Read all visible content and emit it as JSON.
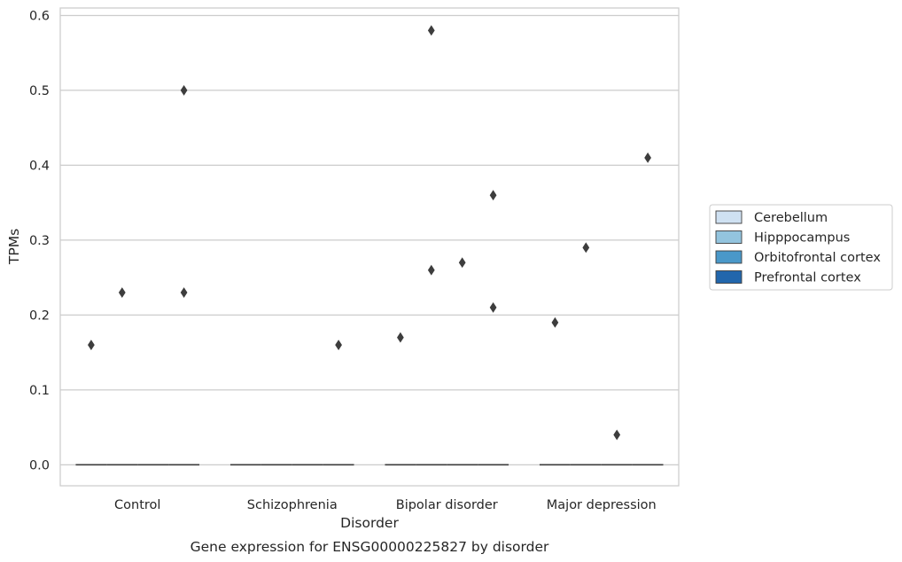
{
  "chart_data": {
    "type": "box",
    "title": "",
    "caption": "Gene expression for ENSG00000225827 by disorder",
    "xlabel": "Disorder",
    "ylabel": "TPMs",
    "categories": [
      "Control",
      "Schizophrenia",
      "Bipolar disorder",
      "Major depression"
    ],
    "ylim": [
      -0.028,
      0.61
    ],
    "yticks": [
      "0.0",
      "0.1",
      "0.2",
      "0.3",
      "0.4",
      "0.5",
      "0.6"
    ],
    "grid": "horizontal",
    "legend_position": "right",
    "series": [
      {
        "name": "Cerebellum",
        "color": "#cfe1f2",
        "medians": [
          0,
          0,
          0,
          0
        ],
        "outliers": [
          [
            0.16
          ],
          [],
          [
            0.17
          ],
          [
            0.19
          ]
        ]
      },
      {
        "name": "Hipppocampus",
        "color": "#93c4de",
        "medians": [
          0,
          0,
          0,
          0
        ],
        "outliers": [
          [
            0.23
          ],
          [],
          [
            0.58,
            0.26
          ],
          [
            0.29
          ]
        ]
      },
      {
        "name": "Orbitofrontal cortex",
        "color": "#4a98c9",
        "medians": [
          0,
          0,
          0,
          0
        ],
        "outliers": [
          [],
          [],
          [
            0.27
          ],
          [
            0.04
          ]
        ]
      },
      {
        "name": "Prefrontal cortex",
        "color": "#2266ac",
        "medians": [
          0,
          0,
          0,
          0
        ],
        "outliers": [
          [
            0.5,
            0.23
          ],
          [
            0.16
          ],
          [
            0.36,
            0.21
          ],
          [
            0.41
          ]
        ]
      }
    ]
  }
}
